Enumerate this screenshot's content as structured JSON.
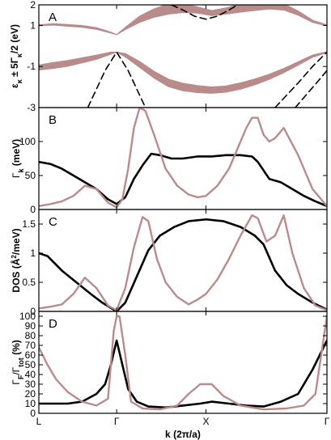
{
  "colors": {
    "pink": "#b98b8b",
    "band": "#b98b8b",
    "black": "#000000"
  },
  "chart_data": [
    {
      "panel": "A",
      "type": "line",
      "ylabel": "ε_κ ± 5Γ_κ/2 (eV)",
      "ylabel_parts": {
        "a": "ε",
        "b": "κ",
        "c": " ± 5Γ",
        "d": "κ",
        "e": "/2  (eV)"
      },
      "ylim": [
        -3,
        2
      ],
      "yticks": [
        -3,
        -1,
        1,
        2
      ],
      "ytick_labels": [
        "-3",
        "-1",
        "1",
        "2"
      ],
      "x_positions": [
        0,
        0.27,
        0.58,
        1.0
      ],
      "series": [
        {
          "style": "band",
          "x": [
            0,
            0.05,
            0.1,
            0.15,
            0.2,
            0.25,
            0.27,
            0.3,
            0.35,
            0.4,
            0.45,
            0.5,
            0.55,
            0.6,
            0.65,
            0.7,
            0.75,
            0.8,
            0.85,
            0.9,
            0.95,
            1.0
          ],
          "y": [
            1.0,
            1.05,
            1.0,
            0.95,
            0.85,
            0.65,
            0.55,
            0.85,
            1.3,
            1.6,
            1.8,
            1.85,
            1.75,
            1.6,
            1.7,
            1.85,
            1.95,
            2.0,
            1.9,
            1.6,
            1.2,
            1.0
          ],
          "halfwidth": [
            0.02,
            0.03,
            0.04,
            0.04,
            0.04,
            0.02,
            0.0,
            0.05,
            0.15,
            0.2,
            0.25,
            0.22,
            0.15,
            0.12,
            0.15,
            0.2,
            0.22,
            0.2,
            0.15,
            0.1,
            0.05,
            0.02
          ]
        },
        {
          "style": "band",
          "x": [
            0,
            0.05,
            0.1,
            0.15,
            0.2,
            0.25,
            0.27,
            0.3,
            0.35,
            0.4,
            0.45,
            0.5,
            0.55,
            0.6,
            0.65,
            0.7,
            0.75,
            0.8,
            0.85,
            0.9,
            0.95,
            1.0
          ],
          "y": [
            -1.05,
            -0.95,
            -0.85,
            -0.7,
            -0.55,
            -0.35,
            -0.3,
            -0.45,
            -0.9,
            -1.4,
            -1.8,
            -2.0,
            -2.1,
            -2.15,
            -2.1,
            -1.95,
            -1.75,
            -1.5,
            -1.2,
            -0.85,
            -0.5,
            -0.3
          ],
          "halfwidth": [
            0.12,
            0.14,
            0.14,
            0.12,
            0.1,
            0.05,
            0.0,
            0.08,
            0.14,
            0.16,
            0.18,
            0.18,
            0.17,
            0.15,
            0.15,
            0.15,
            0.14,
            0.12,
            0.1,
            0.08,
            0.05,
            0.02
          ]
        },
        {
          "style": "dashed",
          "x": [
            0.17,
            0.2,
            0.23,
            0.27,
            0.31,
            0.34,
            0.37
          ],
          "y": [
            -3.0,
            -2.1,
            -1.2,
            -0.3,
            -1.2,
            -2.1,
            -3.0
          ]
        },
        {
          "style": "dashed",
          "x": [
            0.46,
            0.5,
            0.54,
            0.58,
            0.62,
            0.66,
            0.69
          ],
          "y": [
            2.0,
            1.75,
            1.45,
            1.3,
            1.45,
            1.75,
            2.0
          ]
        },
        {
          "style": "dashed",
          "x": [
            0.82,
            0.86,
            0.9,
            0.95,
            1.0
          ],
          "y": [
            -3.0,
            -2.4,
            -1.8,
            -1.0,
            -0.3
          ]
        },
        {
          "style": "dashed",
          "x": [
            0.89,
            0.93,
            0.97,
            1.0
          ],
          "y": [
            -3.0,
            -2.35,
            -1.7,
            -1.2
          ]
        }
      ]
    },
    {
      "panel": "B",
      "type": "line",
      "ylabel": "Γ_k (meV)",
      "ylabel_parts": {
        "a": "Γ",
        "b": "k",
        "c": " (meV)"
      },
      "ylim": [
        0,
        150
      ],
      "yticks": [
        0,
        50,
        100
      ],
      "ytick_labels": [
        "0",
        "50",
        "100"
      ],
      "x_positions": [
        0,
        0.27,
        0.58,
        1.0
      ],
      "series": [
        {
          "style": "black",
          "x": [
            0,
            0.04,
            0.08,
            0.12,
            0.16,
            0.2,
            0.24,
            0.27,
            0.3,
            0.33,
            0.36,
            0.39,
            0.42,
            0.46,
            0.5,
            0.55,
            0.6,
            0.65,
            0.7,
            0.74,
            0.76,
            0.8,
            0.84,
            0.88,
            0.92,
            0.96,
            1.0
          ],
          "y": [
            70,
            67,
            60,
            50,
            40,
            30,
            15,
            8,
            18,
            45,
            65,
            82,
            80,
            75,
            75,
            78,
            78,
            80,
            80,
            78,
            70,
            45,
            40,
            30,
            20,
            12,
            5
          ]
        },
        {
          "style": "pink",
          "x": [
            0,
            0.04,
            0.08,
            0.12,
            0.16,
            0.2,
            0.24,
            0.27,
            0.29,
            0.31,
            0.33,
            0.35,
            0.37,
            0.4,
            0.44,
            0.48,
            0.52,
            0.55,
            0.58,
            0.62,
            0.66,
            0.7,
            0.72,
            0.74,
            0.76,
            0.78,
            0.8,
            0.82,
            0.85,
            0.9,
            0.95,
            1.0
          ],
          "y": [
            5,
            8,
            12,
            20,
            35,
            30,
            10,
            3,
            15,
            60,
            120,
            150,
            145,
            110,
            60,
            35,
            22,
            18,
            20,
            35,
            60,
            100,
            120,
            135,
            135,
            110,
            100,
            105,
            120,
            80,
            30,
            5
          ]
        }
      ]
    },
    {
      "panel": "C",
      "type": "line",
      "ylabel": "DOS (Å²/meV)",
      "ylabel_parts": {
        "a": "DOS (",
        "b": "Å",
        "c": "2",
        "d": "/meV)"
      },
      "ylim": [
        0,
        1.75
      ],
      "yticks": [
        0,
        0.5,
        1,
        1.5
      ],
      "ytick_labels": [
        "0",
        "0.5",
        "1",
        "1.5"
      ],
      "x_positions": [
        0,
        0.27,
        0.58,
        1.0
      ],
      "series": [
        {
          "style": "black",
          "x": [
            0,
            0.03,
            0.08,
            0.13,
            0.18,
            0.22,
            0.27,
            0.3,
            0.34,
            0.38,
            0.42,
            0.47,
            0.52,
            0.58,
            0.64,
            0.7,
            0.75,
            0.78,
            0.82,
            0.86,
            0.9,
            0.95,
            1.0
          ],
          "y": [
            1.0,
            0.95,
            0.7,
            0.5,
            0.3,
            0.15,
            0.0,
            0.15,
            0.6,
            1.05,
            1.3,
            1.45,
            1.55,
            1.58,
            1.55,
            1.45,
            1.3,
            1.15,
            0.7,
            0.45,
            0.3,
            0.15,
            0.03
          ]
        },
        {
          "style": "pink",
          "x": [
            0,
            0.04,
            0.08,
            0.12,
            0.16,
            0.2,
            0.24,
            0.27,
            0.3,
            0.33,
            0.36,
            0.38,
            0.41,
            0.44,
            0.48,
            0.52,
            0.55,
            0.58,
            0.62,
            0.66,
            0.7,
            0.74,
            0.76,
            0.79,
            0.82,
            0.85,
            0.88,
            0.92,
            0.96,
            1.0
          ],
          "y": [
            0.05,
            0.08,
            0.12,
            0.3,
            0.58,
            0.4,
            0.1,
            0.02,
            0.4,
            1.1,
            1.62,
            1.55,
            0.9,
            0.5,
            0.25,
            0.12,
            0.2,
            0.3,
            0.55,
            0.9,
            1.3,
            1.65,
            1.6,
            1.2,
            1.3,
            1.65,
            1.0,
            0.4,
            0.1,
            0.02
          ]
        }
      ]
    },
    {
      "panel": "D",
      "type": "line",
      "ylabel": "Γ_F/Γ_tot (%)",
      "ylabel_parts": {
        "a": "Γ",
        "b": "F",
        "c": "/Γ",
        "d": "tot",
        "e": "  (%)"
      },
      "ylim": [
        0,
        105
      ],
      "yticks": [
        0,
        10,
        20,
        30,
        40,
        50,
        60,
        70,
        80,
        90,
        100
      ],
      "ytick_labels": [
        "0",
        "10",
        "20",
        "30",
        "40",
        "50",
        "60",
        "70",
        "80",
        "90",
        "100"
      ],
      "xticks": [
        0,
        0.27,
        0.58,
        1.0
      ],
      "xtick_labels": [
        "L",
        "Γ",
        "X",
        "Γ"
      ],
      "xlabel": "k (2π/a)",
      "xlabel_parts": {
        "a": "k",
        "b": " (2π/a)"
      },
      "series": [
        {
          "style": "black",
          "x": [
            0,
            0.04,
            0.1,
            0.15,
            0.2,
            0.23,
            0.25,
            0.27,
            0.29,
            0.31,
            0.34,
            0.38,
            0.44,
            0.5,
            0.56,
            0.6,
            0.66,
            0.72,
            0.78,
            0.84,
            0.9,
            0.95,
            1.0
          ],
          "y": [
            10,
            10,
            10,
            12,
            20,
            30,
            50,
            75,
            50,
            25,
            12,
            7,
            6,
            8,
            10,
            12,
            10,
            8,
            7,
            12,
            20,
            45,
            75
          ]
        },
        {
          "style": "pink",
          "x": [
            0,
            0.03,
            0.06,
            0.1,
            0.15,
            0.2,
            0.24,
            0.26,
            0.27,
            0.28,
            0.3,
            0.32,
            0.36,
            0.42,
            0.48,
            0.52,
            0.56,
            0.6,
            0.64,
            0.7,
            0.78,
            0.86,
            0.92,
            0.96,
            1.0
          ],
          "y": [
            68,
            50,
            35,
            22,
            12,
            8,
            15,
            85,
            100,
            100,
            60,
            12,
            5,
            4,
            8,
            20,
            30,
            30,
            18,
            8,
            4,
            5,
            8,
            20,
            100
          ]
        }
      ]
    }
  ]
}
